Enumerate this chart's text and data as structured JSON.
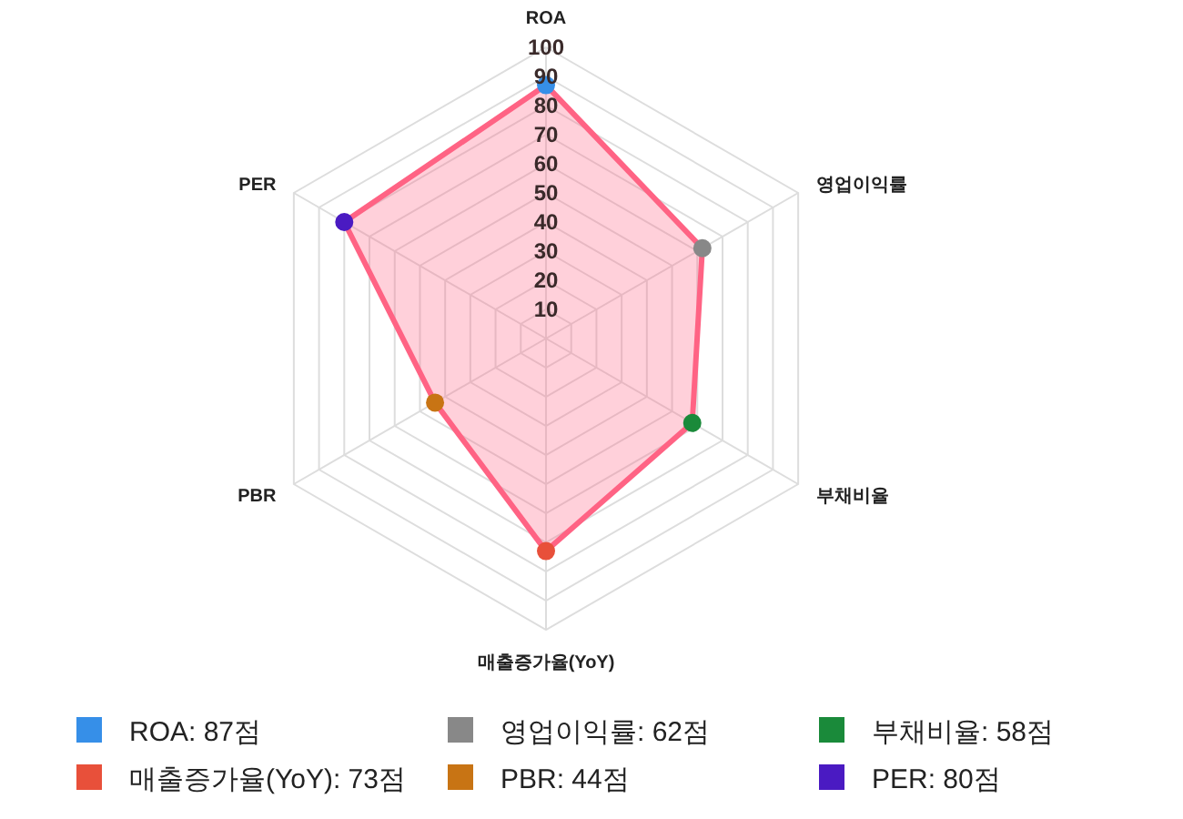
{
  "chart_data": {
    "type": "radar",
    "categories": [
      "ROA",
      "영업이익률",
      "부채비율",
      "매출증가율(YoY)",
      "PBR",
      "PER"
    ],
    "series": [
      {
        "color": "#ff6384",
        "values": [
          87,
          62,
          58,
          73,
          44,
          80
        ],
        "colors": [
          "#368fe8",
          "#888888",
          "#1a8a3a",
          "#e8503a",
          "#c87414",
          "#4a1ac2"
        ]
      }
    ],
    "annotations": [
      "ROA: 87점",
      "영업이익률: 62점",
      "부채비율: 58점",
      "매출증가율(YoY): 73점",
      "PBR: 44점",
      "PER: 80점"
    ],
    "ylim": [
      0,
      100
    ],
    "yticks": [
      10,
      20,
      30,
      40,
      50,
      60,
      70,
      80,
      90,
      100
    ],
    "grid": true,
    "marker": "circle",
    "line_style": "solid"
  }
}
